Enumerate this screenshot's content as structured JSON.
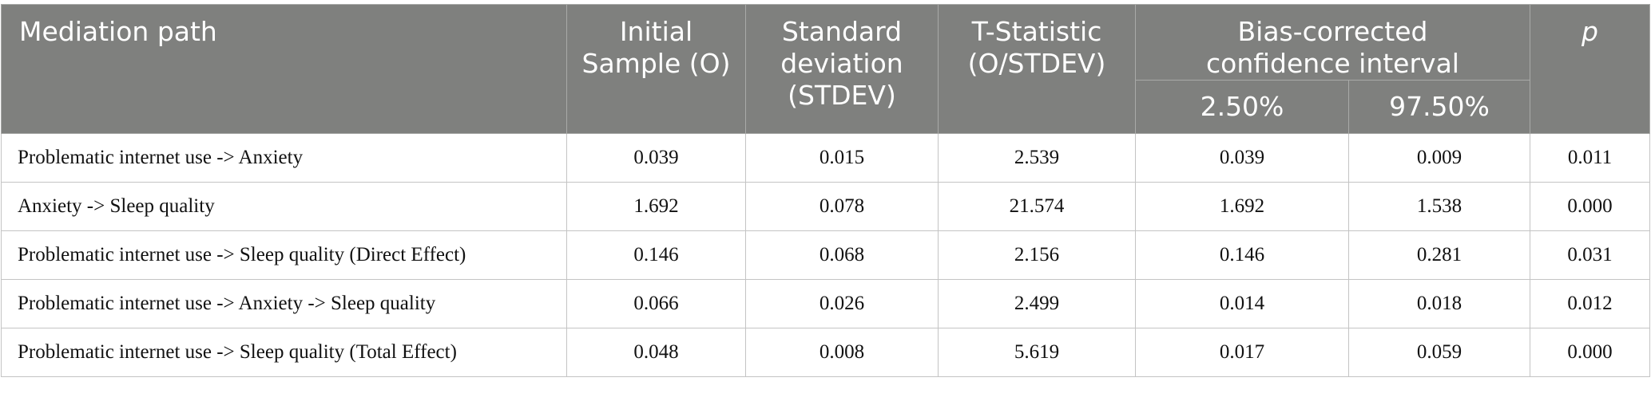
{
  "table": {
    "header": [
      "Mediation path",
      "Initial Sample (O)",
      "Standard deviation (STDEV)",
      "T-Statistic (O/STDEV)",
      "Bias-corrected confidence interval",
      "p"
    ],
    "subheader": [
      "2.50%",
      "97.50%"
    ],
    "rows": [
      [
        "Problematic internet use -> Anxiety",
        "0.039",
        "0.015",
        "2.539",
        "0.039",
        "0.009",
        "0.011"
      ],
      [
        "Anxiety -> Sleep quality",
        "1.692",
        "0.078",
        "21.574",
        "1.692",
        "1.538",
        "0.000"
      ],
      [
        "Problematic internet use -> Sleep quality (Direct Effect)",
        "0.146",
        "0.068",
        "2.156",
        "0.146",
        "0.281",
        "0.031"
      ],
      [
        "Problematic internet use -> Anxiety -> Sleep quality",
        "0.066",
        "0.026",
        "2.499",
        "0.014",
        "0.018",
        "0.012"
      ],
      [
        "Problematic internet use -> Sleep quality (Total Effect)",
        "0.048",
        "0.008",
        "5.619",
        "0.017",
        "0.059",
        "0.000"
      ]
    ]
  }
}
